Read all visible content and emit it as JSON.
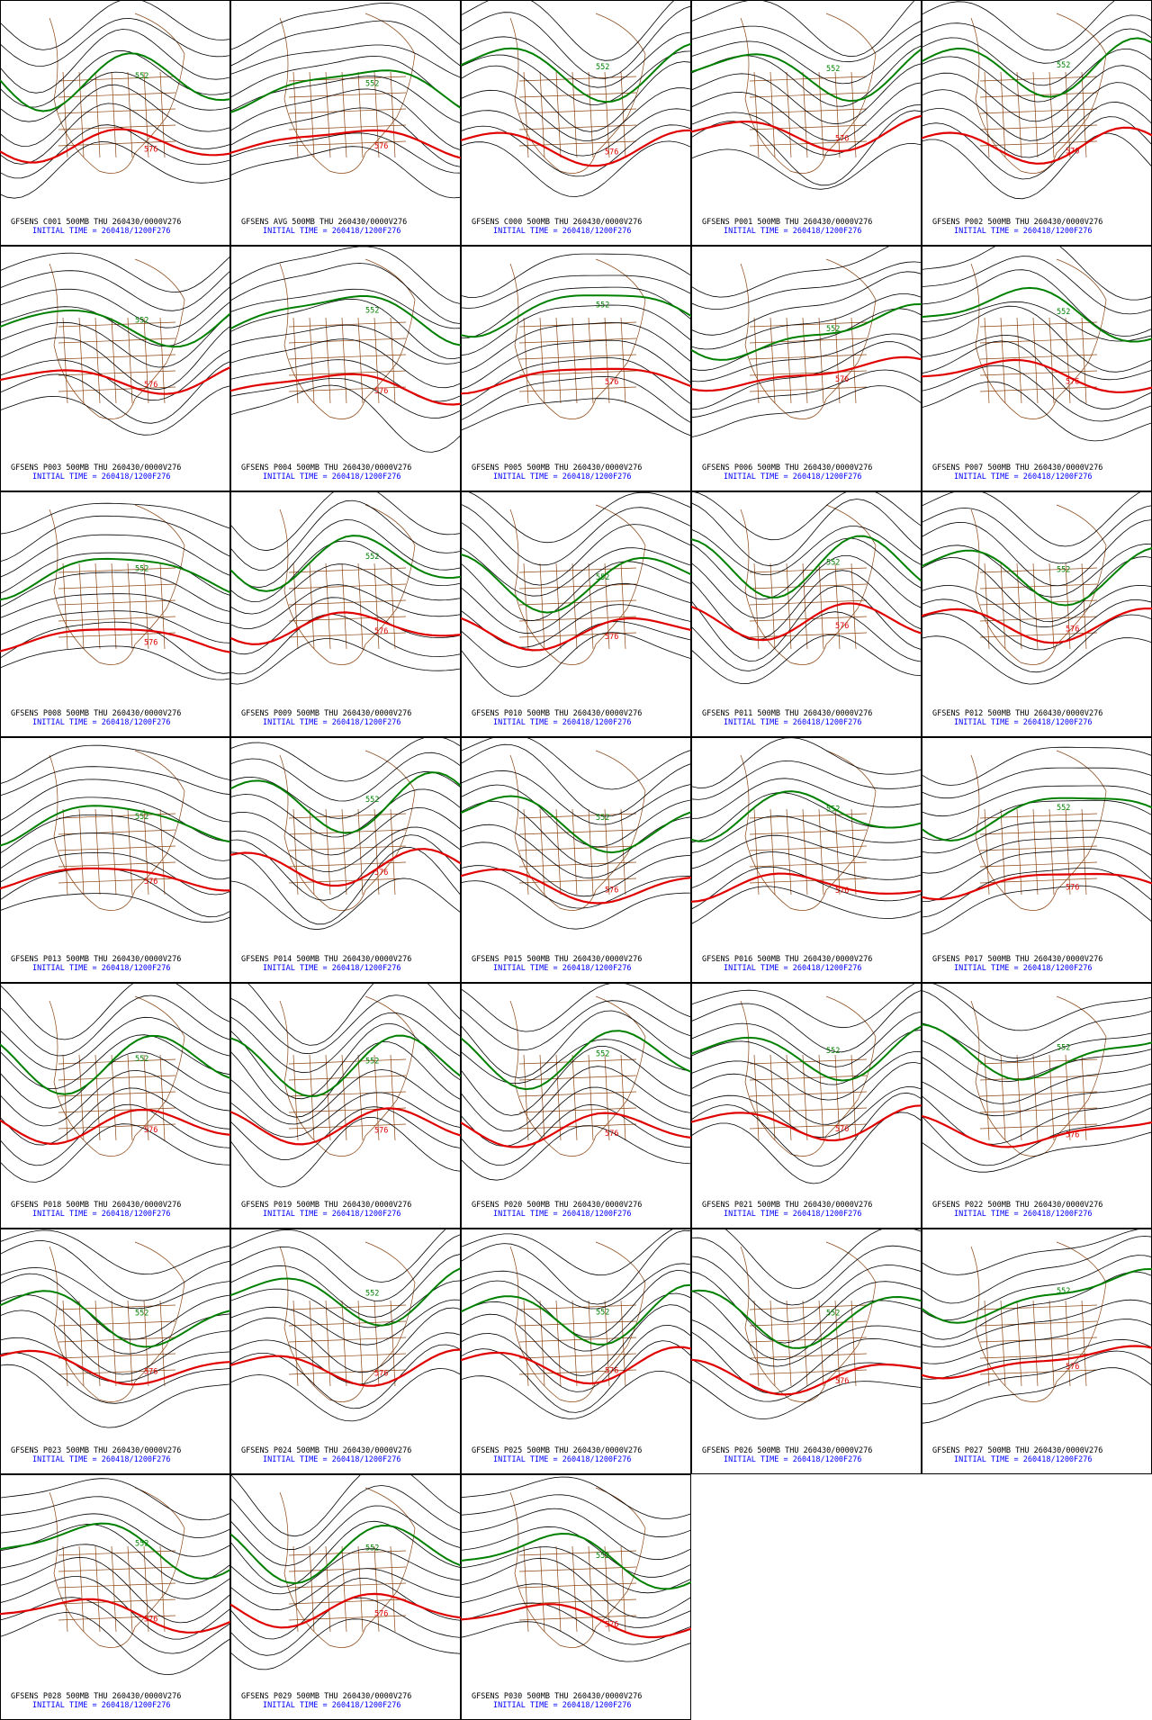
{
  "panels": [
    {
      "title": "GFSENS C001 500MB THU 260430/0000V276",
      "init_time": "INITIAL TIME = 260418/1200F276",
      "contour_labels": [
        "552",
        "576"
      ]
    },
    {
      "title": "GFSENS AVG 500MB THU 260430/0000V276",
      "init_time": "INITIAL TIME = 260418/1200F276",
      "contour_labels": [
        "552",
        "576"
      ]
    },
    {
      "title": "GFSENS C000 500MB THU 260430/0000V276",
      "init_time": "INITIAL TIME = 260418/1200F276",
      "contour_labels": [
        "552",
        "576"
      ]
    },
    {
      "title": "GFSENS P001 500MB THU 260430/0000V276",
      "init_time": "INITIAL TIME = 260418/1200F276",
      "contour_labels": [
        "552",
        "576"
      ]
    },
    {
      "title": "GFSENS P002 500MB THU 260430/0000V276",
      "init_time": "INITIAL TIME = 260418/1200F276",
      "contour_labels": [
        "552",
        "576"
      ]
    },
    {
      "title": "GFSENS P003 500MB THU 260430/0000V276",
      "init_time": "INITIAL TIME = 260418/1200F276",
      "contour_labels": [
        "552",
        "576"
      ]
    },
    {
      "title": "GFSENS P004 500MB THU 260430/0000V276",
      "init_time": "INITIAL TIME = 260418/1200F276",
      "contour_labels": [
        "552",
        "576"
      ]
    },
    {
      "title": "GFSENS P005 500MB THU 260430/0000V276",
      "init_time": "INITIAL TIME = 260418/1200F276",
      "contour_labels": [
        "552",
        "576"
      ]
    },
    {
      "title": "GFSENS P006 500MB THU 260430/0000V276",
      "init_time": "INITIAL TIME = 260418/1200F276",
      "contour_labels": [
        "552",
        "576"
      ]
    },
    {
      "title": "GFSENS P007 500MB THU 260430/0000V276",
      "init_time": "INITIAL TIME = 260418/1200F276",
      "contour_labels": [
        "552",
        "576"
      ]
    },
    {
      "title": "GFSENS P008 500MB THU 260430/0000V276",
      "init_time": "INITIAL TIME = 260418/1200F276",
      "contour_labels": [
        "552",
        "576"
      ]
    },
    {
      "title": "GFSENS P009 500MB THU 260430/0000V276",
      "init_time": "INITIAL TIME = 260418/1200F276",
      "contour_labels": [
        "552",
        "576"
      ]
    },
    {
      "title": "GFSENS P010 500MB THU 260430/0000V276",
      "init_time": "INITIAL TIME = 260418/1200F276",
      "contour_labels": [
        "552",
        "576"
      ]
    },
    {
      "title": "GFSENS P011 500MB THU 260430/0000V276",
      "init_time": "INITIAL TIME = 260418/1200F276",
      "contour_labels": [
        "552",
        "576"
      ]
    },
    {
      "title": "GFSENS P012 500MB THU 260430/0000V276",
      "init_time": "INITIAL TIME = 260418/1200F276",
      "contour_labels": [
        "552",
        "576"
      ]
    },
    {
      "title": "GFSENS P013 500MB THU 260430/0000V276",
      "init_time": "INITIAL TIME = 260418/1200F276",
      "contour_labels": [
        "552",
        "576"
      ]
    },
    {
      "title": "GFSENS P014 500MB THU 260430/0000V276",
      "init_time": "INITIAL TIME = 260418/1200F276",
      "contour_labels": [
        "552",
        "576"
      ]
    },
    {
      "title": "GFSENS P015 500MB THU 260430/0000V276",
      "init_time": "INITIAL TIME = 260418/1200F276",
      "contour_labels": [
        "552",
        "576"
      ]
    },
    {
      "title": "GFSENS P016 500MB THU 260430/0000V276",
      "init_time": "INITIAL TIME = 260418/1200F276",
      "contour_labels": [
        "552",
        "576"
      ]
    },
    {
      "title": "GFSENS P017 500MB THU 260430/0000V276",
      "init_time": "INITIAL TIME = 260418/1200F276",
      "contour_labels": [
        "552",
        "576"
      ]
    },
    {
      "title": "GFSENS P018 500MB THU 260430/0000V276",
      "init_time": "INITIAL TIME = 260418/1200F276",
      "contour_labels": [
        "552",
        "576"
      ]
    },
    {
      "title": "GFSENS P019 500MB THU 260430/0000V276",
      "init_time": "INITIAL TIME = 260418/1200F276",
      "contour_labels": [
        "552",
        "576"
      ]
    },
    {
      "title": "GFSENS P020 500MB THU 260430/0000V276",
      "init_time": "INITIAL TIME = 260418/1200F276",
      "contour_labels": [
        "552",
        "576"
      ]
    },
    {
      "title": "GFSENS P021 500MB THU 260430/0000V276",
      "init_time": "INITIAL TIME = 260418/1200F276",
      "contour_labels": [
        "552",
        "576"
      ]
    },
    {
      "title": "GFSENS P022 500MB THU 260430/0000V276",
      "init_time": "INITIAL TIME = 260418/1200F276",
      "contour_labels": [
        "552",
        "576"
      ]
    },
    {
      "title": "GFSENS P023 500MB THU 260430/0000V276",
      "init_time": "INITIAL TIME = 260418/1200F276",
      "contour_labels": [
        "552",
        "576"
      ]
    },
    {
      "title": "GFSENS P024 500MB THU 260430/0000V276",
      "init_time": "INITIAL TIME = 260418/1200F276",
      "contour_labels": [
        "552",
        "576"
      ]
    },
    {
      "title": "GFSENS P025 500MB THU 260430/0000V276",
      "init_time": "INITIAL TIME = 260418/1200F276",
      "contour_labels": [
        "552",
        "576"
      ]
    },
    {
      "title": "GFSENS P026 500MB THU 260430/0000V276",
      "init_time": "INITIAL TIME = 260418/1200F276",
      "contour_labels": [
        "552",
        "576"
      ]
    },
    {
      "title": "GFSENS P027 500MB THU 260430/0000V276",
      "init_time": "INITIAL TIME = 260418/1200F276",
      "contour_labels": [
        "552",
        "576"
      ]
    },
    {
      "title": "GFSENS P028 500MB THU 260430/0000V276",
      "init_time": "INITIAL TIME = 260418/1200F276",
      "contour_labels": [
        "552",
        "576"
      ]
    },
    {
      "title": "GFSENS P029 500MB THU 260430/0000V276",
      "init_time": "INITIAL TIME = 260418/1200F276",
      "contour_labels": [
        "552",
        "576"
      ]
    },
    {
      "title": "GFSENS P030 500MB THU 260430/0000V276",
      "init_time": "INITIAL TIME = 260418/1200F276",
      "contour_labels": [
        "552",
        "576"
      ]
    }
  ]
}
